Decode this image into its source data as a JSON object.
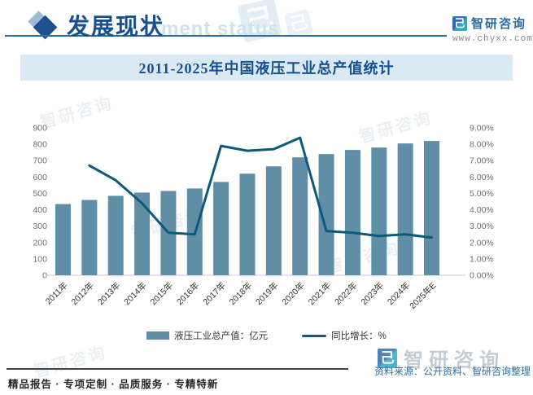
{
  "header": {
    "section_title": "发展现状",
    "watermark_text": "ment status",
    "brand_name": "智研咨询",
    "brand_url": "www.chyxx.com",
    "glyph_char": "己"
  },
  "chart": {
    "title": "2011-2025年中国液压工业总产值统计"
  },
  "chart_data": {
    "type": "bar",
    "combo": "bar-line",
    "title": "2011-2025年中国液压工业总产值统计",
    "categories": [
      "2011年",
      "2012年",
      "2013年",
      "2014年",
      "2015年",
      "2016年",
      "2017年",
      "2018年",
      "2019年",
      "2020年",
      "2021年",
      "2022年",
      "2023年",
      "2024年",
      "2025年E"
    ],
    "series": [
      {
        "name": "液压工业总产值：亿元",
        "type": "bar",
        "axis": "left",
        "color": "#5f8ea6",
        "values": [
          435,
          460,
          485,
          505,
          515,
          530,
          570,
          620,
          665,
          720,
          740,
          765,
          780,
          805,
          820
        ]
      },
      {
        "name": "同比增长：%",
        "type": "line",
        "axis": "right",
        "color": "#0d5a7c",
        "values": [
          null,
          6.7,
          5.8,
          4.4,
          2.6,
          2.5,
          7.9,
          7.6,
          7.7,
          8.4,
          2.7,
          2.6,
          2.4,
          2.5,
          2.3
        ]
      }
    ],
    "left_axis": {
      "min": 0,
      "max": 900,
      "step": 100
    },
    "right_axis": {
      "min": 0,
      "max": 9,
      "step": 1,
      "decimals": 2,
      "suffix": "%"
    },
    "grid": false,
    "legend_position": "bottom"
  },
  "footer": {
    "tagline": "精品报告 · 专项定制 · 品质服务 · 专精特新",
    "source": "资料来源：公开资料、智研咨询整理",
    "watermark_brand": "智研咨询"
  },
  "colors": {
    "accent": "#17508e",
    "band_bg": "#dbe9f2",
    "bar": "#5f8ea6",
    "line": "#0d5a7c",
    "axis_text": "#6f6f6f",
    "x_text": "#333333",
    "baseline": "#c9c9c9"
  }
}
